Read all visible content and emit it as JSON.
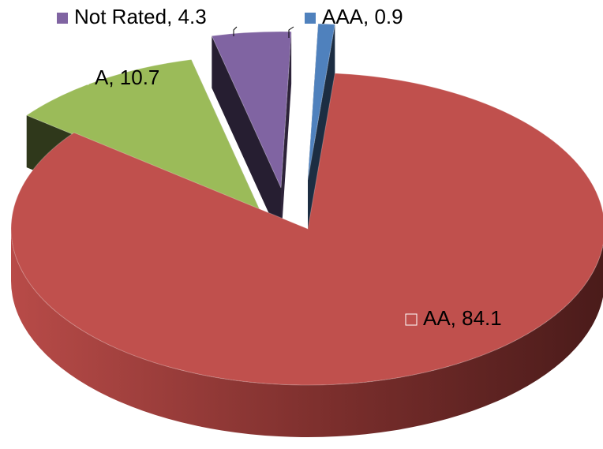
{
  "chart_data": {
    "type": "pie",
    "style": "3d-exploded",
    "slices": [
      {
        "label": "AAA",
        "value": 0.9,
        "color": "#4F81BD",
        "text": "AAA, 0.9"
      },
      {
        "label": "AA",
        "value": 84.1,
        "color": "#C0504D",
        "text": "AA, 84.1"
      },
      {
        "label": "A",
        "value": 10.7,
        "color": "#9BBB59",
        "text": "A, 10.7"
      },
      {
        "label": "Not Rated",
        "value": 4.3,
        "color": "#8064A2",
        "text": "Not Rated, 4.3"
      }
    ]
  }
}
